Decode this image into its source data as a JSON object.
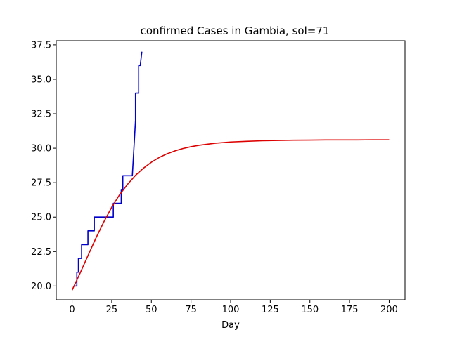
{
  "chart_data": {
    "type": "line",
    "title": "confirmed Cases in Gambia, sol=71",
    "xlabel": "Day",
    "ylabel": "",
    "xlim": [
      -10,
      210
    ],
    "ylim": [
      19.0,
      37.8
    ],
    "xticks": [
      0,
      25,
      50,
      75,
      100,
      125,
      150,
      175,
      200
    ],
    "xtick_labels": [
      "0",
      "25",
      "50",
      "75",
      "100",
      "125",
      "150",
      "175",
      "200"
    ],
    "yticks": [
      20.0,
      22.5,
      25.0,
      27.5,
      30.0,
      32.5,
      35.0,
      37.5
    ],
    "ytick_labels": [
      "20.0",
      "22.5",
      "25.0",
      "27.5",
      "30.0",
      "32.5",
      "35.0",
      "37.5"
    ],
    "grid": false,
    "series": [
      {
        "color": "#0000cc",
        "x": [
          1,
          3,
          3,
          4,
          4,
          5,
          5,
          6,
          6,
          9,
          9,
          10,
          10,
          12,
          12,
          14,
          14,
          15,
          15,
          25,
          25,
          26,
          26,
          31,
          31,
          32,
          32,
          38,
          38,
          39,
          39,
          40,
          40,
          41,
          41,
          42,
          42,
          43,
          43,
          44
        ],
        "y": [
          20,
          20,
          21,
          21,
          22,
          22,
          22,
          22,
          23,
          23,
          23,
          23,
          24,
          24,
          24,
          24,
          25,
          25,
          25,
          25,
          25,
          25,
          26,
          26,
          27,
          27,
          28,
          28,
          28,
          30,
          30,
          32,
          34,
          34,
          34,
          34,
          36,
          36,
          36,
          37
        ]
      },
      {
        "color": "#dd0000",
        "x": [
          0,
          5,
          10,
          15,
          20,
          25,
          30,
          35,
          40,
          45,
          50,
          55,
          60,
          65,
          70,
          75,
          80,
          90,
          100,
          110,
          120,
          130,
          140,
          150,
          160,
          170,
          180,
          190,
          200
        ],
        "y": [
          19.7,
          20.92,
          22.2,
          23.47,
          24.65,
          25.72,
          26.63,
          27.38,
          28.03,
          28.55,
          28.98,
          29.33,
          29.6,
          29.81,
          29.98,
          30.11,
          30.21,
          30.36,
          30.45,
          30.5,
          30.54,
          30.56,
          30.58,
          30.59,
          30.6,
          30.6,
          30.6,
          30.61,
          30.61
        ]
      }
    ]
  }
}
